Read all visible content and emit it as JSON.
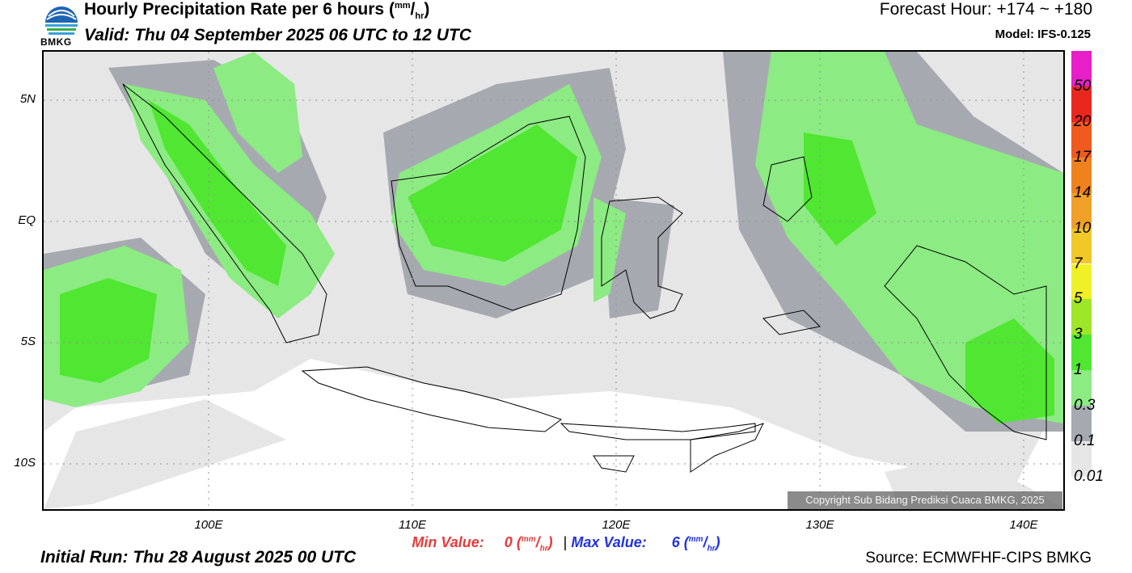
{
  "header": {
    "title": "Hourly Precipitation Rate per 6 hours",
    "title_unit_num": "mm",
    "title_unit_den": "hr",
    "valid": "Valid: Thu 04 September 2025 06 UTC to 12 UTC",
    "forecast_hour": "Forecast Hour: +174 ~ +180",
    "model": "Model: IFS-0.125",
    "logo_text": "BMKG"
  },
  "axes": {
    "y_labels": [
      "5N",
      "EQ",
      "5S",
      "10S"
    ],
    "x_labels": [
      "100E",
      "110E",
      "120E",
      "130E",
      "140E"
    ]
  },
  "legend": {
    "labels": [
      "50",
      "20",
      "17",
      "14",
      "10",
      "7",
      "5",
      "3",
      "1",
      "0.3",
      "0.1",
      "0.01"
    ],
    "colors": [
      "#e81ec8",
      "#e8281e",
      "#f05a1e",
      "#f0821e",
      "#f0a028",
      "#f0c828",
      "#f0f028",
      "#a0e628",
      "#50e632",
      "#8ceb82",
      "#a6aab0",
      "#e6e6e6"
    ]
  },
  "stats": {
    "min_label": "Min Value:",
    "min_value": "0",
    "max_label": "Max Value:",
    "max_value": "6",
    "separator": "|",
    "unit_num": "mm",
    "unit_den": "hr"
  },
  "footer": {
    "initial_run": "Initial Run: Thu 28 August 2025 00 UTC",
    "source": "Source: ECMWFHF-CIPS BMKG",
    "copyright": "Copyright Sub Bidang Prediksi Cuaca BMKG, 2025"
  },
  "colors": {
    "green_light": "#8ceb82",
    "green": "#50e632",
    "gray": "#a6aab0",
    "light_gray": "#e6e6e6"
  }
}
